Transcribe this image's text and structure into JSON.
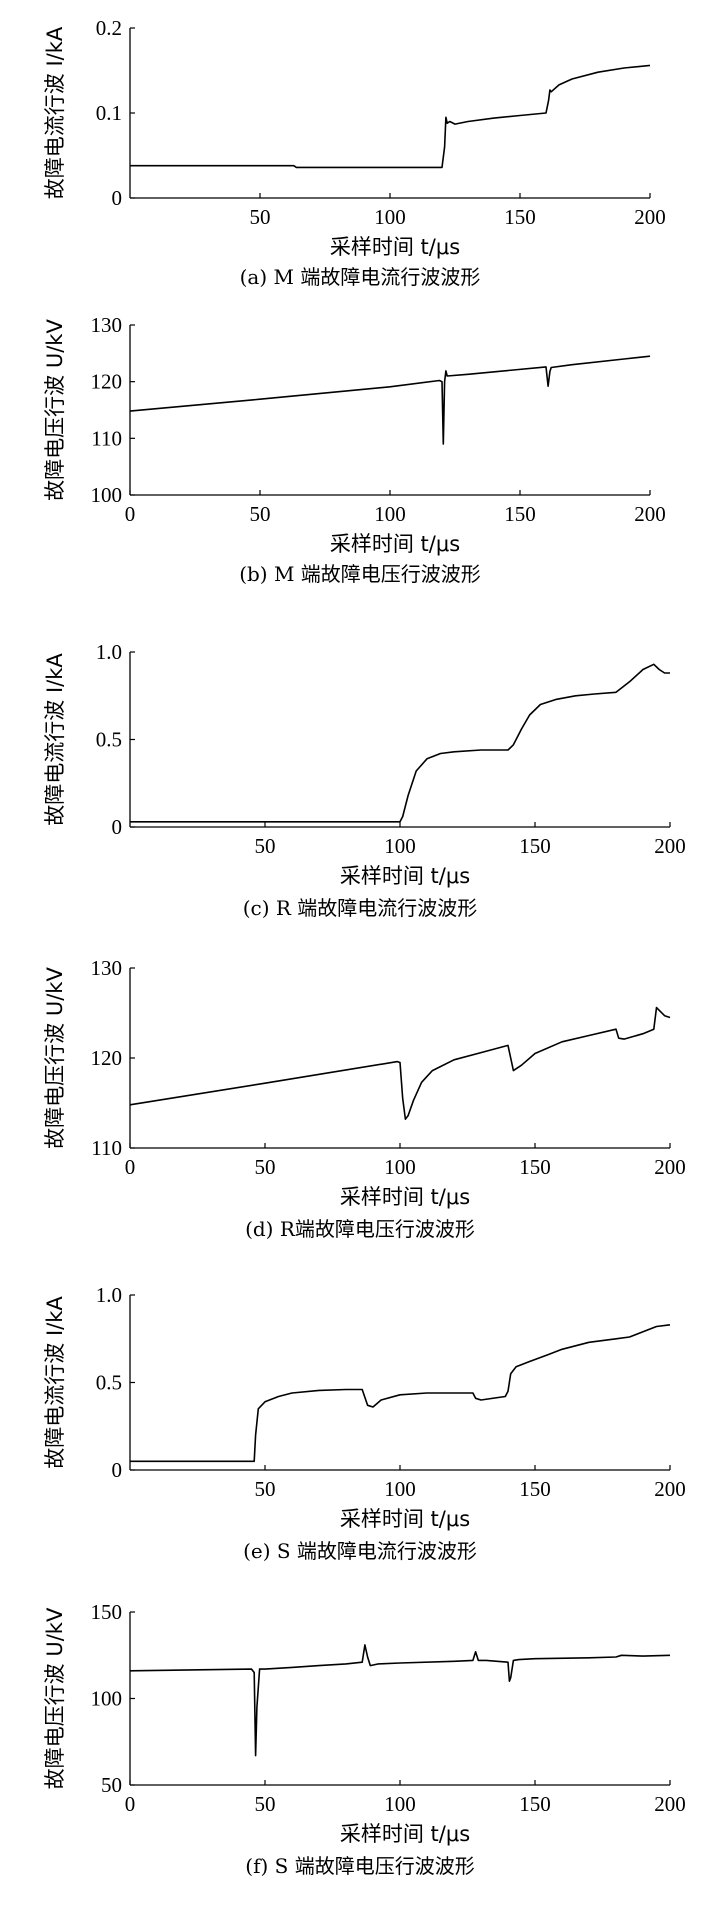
{
  "chart_data": [
    {
      "type": "line",
      "caption": "(a) M 端故障电流行波波形",
      "xlabel": "采样时间 t/μs",
      "ylabel": "故障电流行波 I/kA",
      "xlim": [
        0,
        200
      ],
      "ylim": [
        0,
        0.2
      ],
      "xticks": [
        50,
        100,
        150,
        200
      ],
      "yticks": [
        0,
        0.1,
        0.2
      ],
      "ytick_labels": [
        "0",
        "0.1",
        "0.2"
      ],
      "grid": false,
      "series": [
        {
          "x": [
            0,
            63,
            64,
            120,
            121,
            121.5,
            122,
            123,
            125,
            130,
            140,
            150,
            160,
            161,
            161.5,
            162,
            165,
            170,
            180,
            190,
            200
          ],
          "y": [
            0.038,
            0.038,
            0.036,
            0.036,
            0.06,
            0.095,
            0.088,
            0.09,
            0.087,
            0.09,
            0.094,
            0.097,
            0.1,
            0.115,
            0.127,
            0.125,
            0.133,
            0.14,
            0.148,
            0.153,
            0.156
          ]
        }
      ]
    },
    {
      "type": "line",
      "caption": "(b) M 端故障电压行波波形",
      "xlabel": "采样时间 t/μs",
      "ylabel": "故障电压行波 U/kV",
      "xlim": [
        0,
        200
      ],
      "ylim": [
        100,
        130
      ],
      "xticks": [
        0,
        50,
        100,
        150,
        200
      ],
      "yticks": [
        100,
        110,
        120,
        130
      ],
      "ytick_labels": [
        "100",
        "110",
        "120",
        "130"
      ],
      "grid": false,
      "series": [
        {
          "x": [
            0,
            50,
            100,
            119,
            120,
            120.5,
            121,
            121.5,
            122,
            130,
            160,
            160.8,
            161.5,
            162,
            170,
            190,
            200
          ],
          "y": [
            114.8,
            116.9,
            119.1,
            120.2,
            120.0,
            109.0,
            120.0,
            121.9,
            121.0,
            121.3,
            122.6,
            119.2,
            121.8,
            122.5,
            123.0,
            124.0,
            124.5
          ]
        }
      ]
    },
    {
      "type": "line",
      "caption": "(c) R 端故障电流行波波形",
      "xlabel": "采样时间 t/μs",
      "ylabel": "故障电流行波 I/kA",
      "xlim": [
        0,
        200
      ],
      "ylim": [
        0,
        1.0
      ],
      "xticks": [
        50,
        100,
        150,
        200
      ],
      "yticks": [
        0,
        0.5,
        1.0
      ],
      "ytick_labels": [
        "0",
        "0.5",
        "1.0"
      ],
      "grid": false,
      "series": [
        {
          "x": [
            0,
            100,
            101,
            103,
            106,
            110,
            115,
            120,
            130,
            140,
            142,
            145,
            148,
            152,
            158,
            165,
            172,
            180,
            185,
            190,
            194,
            196,
            198,
            200
          ],
          "y": [
            0.03,
            0.03,
            0.06,
            0.18,
            0.32,
            0.39,
            0.42,
            0.43,
            0.44,
            0.44,
            0.47,
            0.56,
            0.64,
            0.7,
            0.73,
            0.75,
            0.76,
            0.77,
            0.83,
            0.9,
            0.93,
            0.9,
            0.88,
            0.88
          ]
        }
      ]
    },
    {
      "type": "line",
      "caption": "(d) R端故障电压行波波形",
      "xlabel": "采样时间 t/μs",
      "ylabel": "故障电压行波 U/kV",
      "xlim": [
        0,
        200
      ],
      "ylim": [
        110,
        130
      ],
      "xticks": [
        0,
        50,
        100,
        150,
        200
      ],
      "yticks": [
        110,
        120,
        130
      ],
      "ytick_labels": [
        "110",
        "120",
        "130"
      ],
      "grid": false,
      "series": [
        {
          "x": [
            0,
            50,
            99,
            100,
            101,
            102,
            103,
            105,
            108,
            112,
            120,
            130,
            140,
            141,
            142,
            145,
            150,
            160,
            170,
            180,
            181,
            183,
            190,
            194,
            195,
            196,
            198,
            200
          ],
          "y": [
            114.8,
            117.2,
            119.6,
            119.5,
            115.5,
            113.2,
            113.6,
            115.3,
            117.3,
            118.6,
            119.8,
            120.6,
            121.4,
            120.0,
            118.6,
            119.2,
            120.5,
            121.8,
            122.5,
            123.2,
            122.2,
            122.1,
            122.7,
            123.2,
            125.6,
            125.3,
            124.7,
            124.5
          ]
        }
      ]
    },
    {
      "type": "line",
      "caption": "(e) S 端故障电流行波波形",
      "xlabel": "采样时间 t/μs",
      "ylabel": "故障电流行波 I/kA",
      "xlim": [
        0,
        200
      ],
      "ylim": [
        0,
        1.0
      ],
      "xticks": [
        50,
        100,
        150,
        200
      ],
      "yticks": [
        0,
        0.5,
        1.0
      ],
      "ytick_labels": [
        "0",
        "0.5",
        "1.0"
      ],
      "grid": false,
      "series": [
        {
          "x": [
            0,
            46,
            46.5,
            47.5,
            50,
            55,
            60,
            70,
            80,
            86,
            88,
            90,
            93,
            100,
            110,
            120,
            127,
            128,
            130,
            139,
            140,
            141,
            143,
            148,
            155,
            160,
            170,
            180,
            185,
            190,
            195,
            200
          ],
          "y": [
            0.05,
            0.05,
            0.2,
            0.35,
            0.39,
            0.42,
            0.44,
            0.455,
            0.46,
            0.46,
            0.37,
            0.36,
            0.4,
            0.43,
            0.44,
            0.44,
            0.44,
            0.41,
            0.4,
            0.42,
            0.45,
            0.55,
            0.59,
            0.62,
            0.66,
            0.69,
            0.73,
            0.75,
            0.76,
            0.79,
            0.82,
            0.83
          ]
        }
      ]
    },
    {
      "type": "line",
      "caption": "(f) S 端故障电压行波波形",
      "xlabel": "采样时间 t/μs",
      "ylabel": "故障电压行波 U/kV",
      "xlim": [
        0,
        200
      ],
      "ylim": [
        50,
        150
      ],
      "xticks": [
        0,
        50,
        100,
        150,
        200
      ],
      "yticks": [
        50,
        100,
        150
      ],
      "ytick_labels": [
        "50",
        "100",
        "150"
      ],
      "grid": false,
      "series": [
        {
          "x": [
            0,
            45,
            46,
            46.5,
            47,
            48,
            50,
            60,
            70,
            80,
            86,
            87,
            88,
            89,
            92,
            100,
            120,
            127,
            128,
            129,
            132,
            140,
            140.5,
            141,
            142,
            144,
            150,
            170,
            180,
            182,
            190,
            200
          ],
          "y": [
            116,
            117,
            115,
            67,
            95,
            117,
            117,
            118,
            119,
            120,
            121,
            131,
            124,
            119,
            120,
            120.5,
            121.5,
            122,
            127,
            122,
            122,
            121,
            110,
            112,
            122,
            122.5,
            123,
            123.5,
            124,
            125,
            124.5,
            125
          ]
        }
      ]
    }
  ]
}
